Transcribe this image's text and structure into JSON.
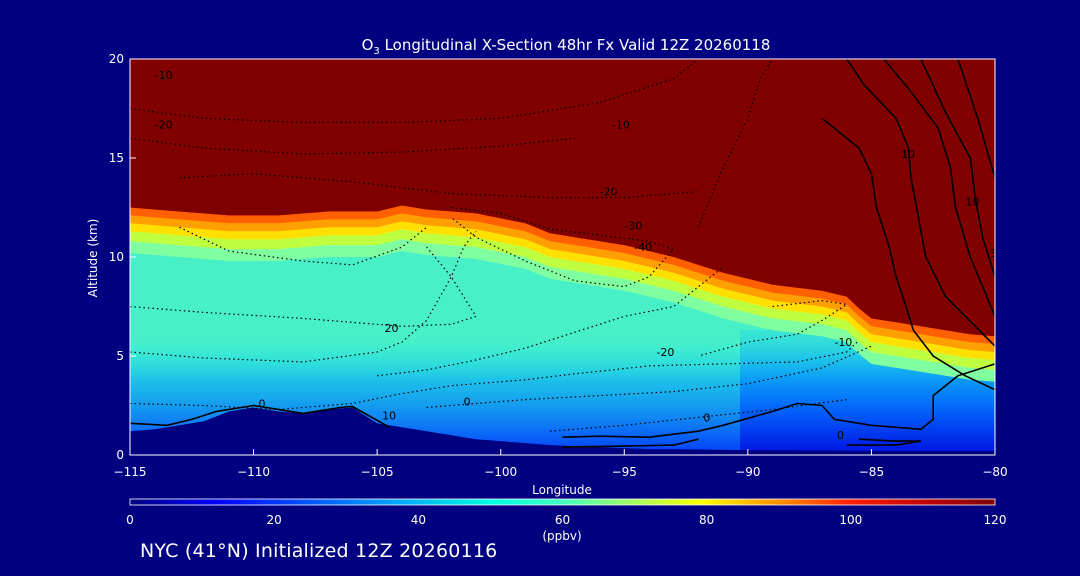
{
  "chart_data": {
    "type": "heatmap",
    "title_prefix": "O",
    "title_subscript": "3",
    "title_suffix": " Longitudinal X-Section 48hr  Fx Valid 12Z 20260118",
    "xlabel": "Longitude",
    "ylabel": "Altitude (km)",
    "xlim": [
      -115,
      -80
    ],
    "ylim": [
      0,
      20
    ],
    "x_ticks": [
      -115,
      -110,
      -105,
      -100,
      -95,
      -90,
      -85,
      -80
    ],
    "x_tick_labels": [
      "−115",
      "−110",
      "−105",
      "−100",
      "−95",
      "−90",
      "−85",
      "−80"
    ],
    "y_ticks": [
      0,
      5,
      10,
      15,
      20
    ],
    "y_tick_labels": [
      "0",
      "5",
      "10",
      "15",
      "20"
    ],
    "colorbar": {
      "min": 0,
      "max": 120,
      "ticks": [
        0,
        20,
        40,
        60,
        80,
        100,
        120
      ],
      "tick_labels": [
        "0",
        "20",
        "40",
        "60",
        "80",
        "100",
        "120"
      ],
      "units_label": "(ppbv)"
    },
    "terrain_km": {
      "lon": [
        -115,
        -114,
        -113,
        -112,
        -111,
        -110,
        -109,
        -108,
        -107,
        -106,
        -105,
        -104,
        -103,
        -102,
        -101,
        -100,
        -99,
        -98,
        -97,
        -96,
        -95,
        -94,
        -93,
        -92,
        -91,
        -90,
        -89,
        -88,
        -87,
        -86,
        -85,
        -84,
        -83,
        -82,
        -81,
        -80
      ],
      "alt": [
        1.2,
        1.3,
        1.5,
        1.7,
        2.2,
        2.4,
        2.2,
        2.1,
        2.3,
        2.4,
        1.6,
        1.4,
        1.2,
        1.0,
        0.8,
        0.7,
        0.6,
        0.5,
        0.45,
        0.4,
        0.35,
        0.3,
        0.3,
        0.28,
        0.26,
        0.25,
        0.24,
        0.23,
        0.22,
        0.21,
        0.2,
        0.2,
        0.2,
        0.2,
        0.2,
        0.2
      ]
    },
    "tropopause_km": {
      "lon": [
        -115,
        -113,
        -111,
        -109,
        -107,
        -105,
        -104,
        -103,
        -101,
        -99,
        -98,
        -97,
        -95,
        -93,
        -91,
        -89,
        -87,
        -86,
        -85.5,
        -85,
        -84,
        -83,
        -82,
        -81,
        -80
      ],
      "alt": [
        12.5,
        12.3,
        12.1,
        12.1,
        12.3,
        12.3,
        12.6,
        12.4,
        12.2,
        11.7,
        11.2,
        11.0,
        10.6,
        10.0,
        9.2,
        8.6,
        8.3,
        8.0,
        7.4,
        6.9,
        6.7,
        6.5,
        6.3,
        6.1,
        6.0
      ]
    },
    "solid_contour_labels": [
      "10",
      "10",
      "30"
    ],
    "dotted_contour_labels": [
      "-10",
      "-20",
      "-10",
      "-20",
      "-30",
      "-40",
      "0",
      "20",
      "10",
      "0",
      "-20",
      "0",
      "-10",
      "0"
    ],
    "colors": {
      "background": "#000080",
      "stratosphere": "#800000",
      "text": "#ffffff",
      "scale": [
        "#00008f",
        "#0000ff",
        "#0080ff",
        "#00e0ff",
        "#40ffc0",
        "#c0ff40",
        "#ffff00",
        "#ff8000",
        "#ff0000",
        "#800000"
      ]
    }
  },
  "footer": {
    "text": "NYC (41°N) Initialized 12Z 20260116"
  }
}
